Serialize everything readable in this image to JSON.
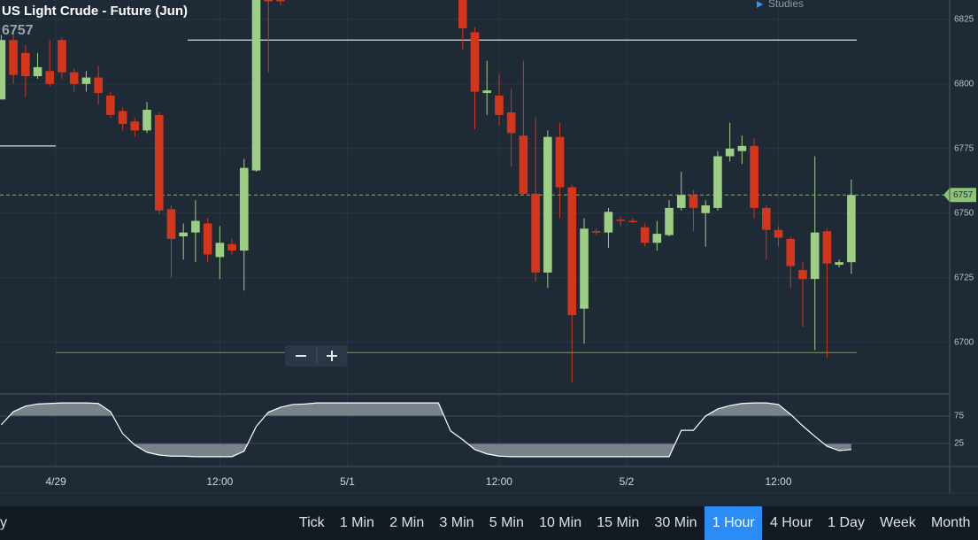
{
  "chart_data": [
    {
      "type": "candlestick",
      "title": "US Light Crude - Future (Jun)",
      "last": 6757,
      "grid": true,
      "up_color": "#9ccf83",
      "down_color": "#d4361b",
      "x": [
        0,
        1,
        2,
        3,
        4,
        5,
        6,
        7,
        8,
        9,
        10,
        11,
        12,
        13,
        14,
        15,
        16,
        17,
        18,
        19,
        20,
        21,
        22,
        23,
        24,
        25,
        26,
        27,
        28,
        29,
        30,
        31,
        32,
        33,
        34,
        35,
        36,
        37,
        38,
        39,
        40,
        41,
        42,
        43,
        44,
        45,
        46,
        47,
        48,
        49,
        50,
        51,
        52,
        53,
        54,
        55,
        56,
        57,
        58,
        59,
        60,
        61,
        62,
        63,
        64,
        65,
        66,
        67,
        68,
        69,
        70
      ],
      "open": [
        6794,
        6817,
        6812,
        6803,
        6805,
        6817,
        6804.5,
        6800,
        6802.5,
        6795.5,
        6789.5,
        6785.5,
        6782,
        6788,
        6751.5,
        6741,
        6742.5,
        6746,
        6733,
        6738,
        6735.5,
        6766.5,
        6835,
        6833,
        null,
        null,
        null,
        null,
        null,
        null,
        null,
        null,
        null,
        null,
        null,
        null,
        null,
        null,
        6840,
        6820,
        6796.5,
        6795.5,
        6789,
        6780,
        6757.5,
        6727,
        6779.5,
        6760,
        6713,
        6743,
        6742.5,
        6747.5,
        6747,
        6744.5,
        6738.5,
        6741.5,
        6752,
        6757,
        6750,
        6752,
        6772,
        6774,
        6776,
        6752,
        6743.5,
        6740,
        6728,
        6724.5,
        6743,
        6730,
        6731
      ],
      "high": [
        6819,
        6819,
        6815,
        6812,
        6817,
        6818,
        6806,
        6805,
        6807,
        6797,
        6791,
        6787,
        6793,
        6789,
        6753,
        6746,
        6755,
        6748,
        6745,
        6740,
        6771,
        6840,
        6840,
        6836,
        null,
        null,
        null,
        null,
        null,
        null,
        null,
        null,
        null,
        null,
        null,
        null,
        null,
        null,
        6845,
        6822,
        6809,
        6804,
        6798,
        6809,
        6787,
        6782,
        6785,
        6761,
        6748,
        6744,
        6752,
        6748.5,
        6748,
        6746,
        6747,
        6755,
        6766,
        6759,
        6755,
        6774,
        6785,
        6780,
        6779,
        6753,
        6745,
        6741,
        6731,
        6772,
        6744,
        6732,
        6763
      ],
      "low": [
        6794,
        6800,
        6795,
        6802,
        6799,
        6802,
        6797,
        6797,
        6792,
        6787,
        6782,
        6779.5,
        6781,
        6749.5,
        6725,
        6732,
        6731,
        6731,
        6724.5,
        6734,
        6720,
        6766,
        6804.5,
        6830.5,
        null,
        null,
        null,
        null,
        null,
        null,
        null,
        null,
        null,
        null,
        null,
        null,
        null,
        null,
        6813.5,
        6782.5,
        6788,
        6784,
        6768,
        6757,
        6723.5,
        6721,
        6748,
        6684.5,
        6699.5,
        6741.5,
        6736.5,
        6745,
        6746,
        6737,
        6735.5,
        6741,
        6751,
        6743,
        6737,
        6751,
        6770,
        6769,
        6748,
        6732,
        6737,
        6721,
        6706,
        6697,
        6694,
        6729,
        6726.5
      ],
      "close": [
        6817,
        6803.5,
        6803,
        6806.5,
        6800,
        6804.5,
        6800,
        6802.5,
        6796.5,
        6788,
        6784.5,
        6782,
        6790,
        6751,
        6740,
        6742.5,
        6747,
        6734,
        6738.5,
        6735.5,
        6767.5,
        6835,
        6832,
        6832,
        null,
        null,
        null,
        null,
        null,
        null,
        null,
        null,
        null,
        null,
        null,
        null,
        null,
        null,
        6821.5,
        6797,
        6797.5,
        6788,
        6781,
        6757.5,
        6727,
        6779.5,
        6760,
        6710.5,
        6744,
        6742.5,
        6750.5,
        6747,
        6746.5,
        6738.5,
        6742,
        6752,
        6757,
        6752,
        6753,
        6772,
        6775,
        6776,
        6752,
        6743.5,
        6740.5,
        6729.5,
        6724.5,
        6742.5,
        6730.5,
        6731,
        6757
      ],
      "hlines": [
        6817,
        6776,
        6696
      ],
      "xlim": [
        -0.1,
        78.1
      ],
      "xticks": [
        {
          "value": 4.5,
          "label": "4/29"
        },
        {
          "value": 18,
          "label": "12:00"
        },
        {
          "value": 28.5,
          "label": "5/1"
        },
        {
          "value": 41,
          "label": "12:00"
        },
        {
          "value": 51.5,
          "label": "5/2"
        },
        {
          "value": 64,
          "label": "12:00"
        }
      ],
      "ylim": [
        6680,
        6832.5
      ],
      "yticks": [
        6825,
        6800,
        6775,
        6750,
        6725,
        6700
      ]
    },
    {
      "type": "line",
      "color": "#ffffff",
      "fill_color": "#8a9098",
      "x": [
        0,
        1,
        2,
        3,
        4,
        5,
        6,
        7,
        8,
        9,
        10,
        11,
        12,
        13,
        14,
        15,
        16,
        17,
        18,
        19,
        20,
        21,
        22,
        23,
        24,
        25,
        26,
        27,
        28,
        29,
        30,
        31,
        32,
        33,
        34,
        35,
        36,
        37,
        38,
        39,
        40,
        41,
        42,
        43,
        44,
        45,
        46,
        47,
        48,
        49,
        50,
        51,
        52,
        53,
        54,
        55,
        56,
        57,
        58,
        59,
        60,
        61,
        62,
        63,
        64,
        65,
        66,
        67,
        68,
        69,
        70
      ],
      "values": [
        59,
        83,
        93,
        97,
        98,
        99,
        99,
        99,
        98,
        83,
        43,
        22,
        9,
        4,
        2,
        2,
        1,
        1,
        1,
        1,
        11,
        56,
        82,
        91,
        96,
        97,
        99,
        99,
        99,
        99,
        99,
        99,
        99,
        99,
        99,
        99,
        99,
        48,
        32,
        14,
        6,
        2,
        1,
        1,
        1,
        1,
        1,
        1,
        1,
        1,
        1,
        1,
        1,
        1,
        1,
        1,
        49,
        49,
        75,
        88,
        94,
        98,
        99,
        99,
        96,
        78,
        57,
        38,
        20,
        12,
        14
      ],
      "xlim": [
        -0.1,
        78.1
      ],
      "ylim": [
        -17,
        115.3
      ],
      "yticks": [
        75,
        25
      ]
    }
  ],
  "header": {
    "studies": "Studies"
  },
  "toolbar": {
    "period": "y",
    "buttons": [
      "Tick",
      "1 Min",
      "2 Min",
      "3 Min",
      "5 Min",
      "10 Min",
      "15 Min",
      "30 Min",
      "1 Hour",
      "4 Hour",
      "1 Day",
      "Week",
      "Month"
    ],
    "selected": "1 Hour"
  }
}
